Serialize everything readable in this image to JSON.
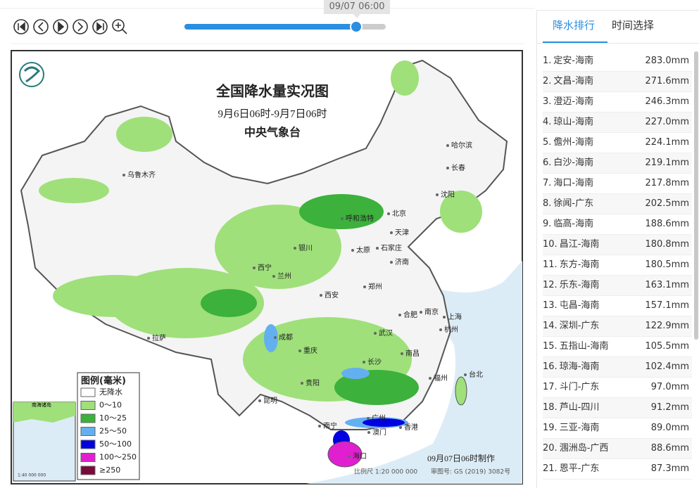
{
  "toolbar": {
    "time_tooltip": "09/07 06:00"
  },
  "map": {
    "title": "全国降水量实况图",
    "period": "9月6日06时-9月7日06时",
    "issuer": "中央气象台",
    "legend": {
      "title": "图例(毫米)",
      "items": [
        "无降水",
        "0～10",
        "10～25",
        "25～50",
        "50～100",
        "100～250",
        "≥250"
      ]
    },
    "cities": [
      "乌鲁木齐",
      "哈尔滨",
      "长春",
      "沈阳",
      "呼和浩特",
      "北京",
      "天津",
      "银川",
      "太原",
      "石家庄",
      "西宁",
      "兰州",
      "济南",
      "郑州",
      "西安",
      "合肥",
      "南京",
      "上海",
      "杭州",
      "武汉",
      "成都",
      "重庆",
      "拉萨",
      "南昌",
      "长沙",
      "福州",
      "台北",
      "贵阳",
      "昆明",
      "南宁",
      "广州",
      "香港",
      "澳门",
      "海口"
    ],
    "inset": {
      "label": "南海诸岛",
      "scale": "1:40 000 000"
    },
    "made_time": "09月07日06时制作",
    "scale": "比例尺 1:20 000 000",
    "approval": "审图号: GS (2019) 3082号"
  },
  "panel": {
    "tabs": [
      "降水排行",
      "时间选择"
    ],
    "ranking": [
      {
        "rank": "1.",
        "station": "定安-海南",
        "amount": "283.0mm"
      },
      {
        "rank": "2.",
        "station": "文昌-海南",
        "amount": "271.6mm"
      },
      {
        "rank": "3.",
        "station": "澄迈-海南",
        "amount": "246.3mm"
      },
      {
        "rank": "4.",
        "station": "琼山-海南",
        "amount": "227.0mm"
      },
      {
        "rank": "5.",
        "station": "儋州-海南",
        "amount": "224.1mm"
      },
      {
        "rank": "6.",
        "station": "白沙-海南",
        "amount": "219.1mm"
      },
      {
        "rank": "7.",
        "station": "海口-海南",
        "amount": "217.8mm"
      },
      {
        "rank": "8.",
        "station": "徐闻-广东",
        "amount": "202.5mm"
      },
      {
        "rank": "9.",
        "station": "临高-海南",
        "amount": "188.6mm"
      },
      {
        "rank": "10.",
        "station": "昌江-海南",
        "amount": "180.8mm"
      },
      {
        "rank": "11.",
        "station": "东方-海南",
        "amount": "180.5mm"
      },
      {
        "rank": "12.",
        "station": "乐东-海南",
        "amount": "163.1mm"
      },
      {
        "rank": "13.",
        "station": "屯昌-海南",
        "amount": "157.1mm"
      },
      {
        "rank": "14.",
        "station": "深圳-广东",
        "amount": "122.9mm"
      },
      {
        "rank": "15.",
        "station": "五指山-海南",
        "amount": "105.5mm"
      },
      {
        "rank": "16.",
        "station": "琼海-海南",
        "amount": "102.4mm"
      },
      {
        "rank": "17.",
        "station": "斗门-广东",
        "amount": "97.0mm"
      },
      {
        "rank": "18.",
        "station": "芦山-四川",
        "amount": "91.2mm"
      },
      {
        "rank": "19.",
        "station": "三亚-海南",
        "amount": "89.0mm"
      },
      {
        "rank": "20.",
        "station": "涠洲岛-广西",
        "amount": "88.6mm"
      },
      {
        "rank": "21.",
        "station": "恩平-广东",
        "amount": "87.3mm"
      }
    ]
  }
}
